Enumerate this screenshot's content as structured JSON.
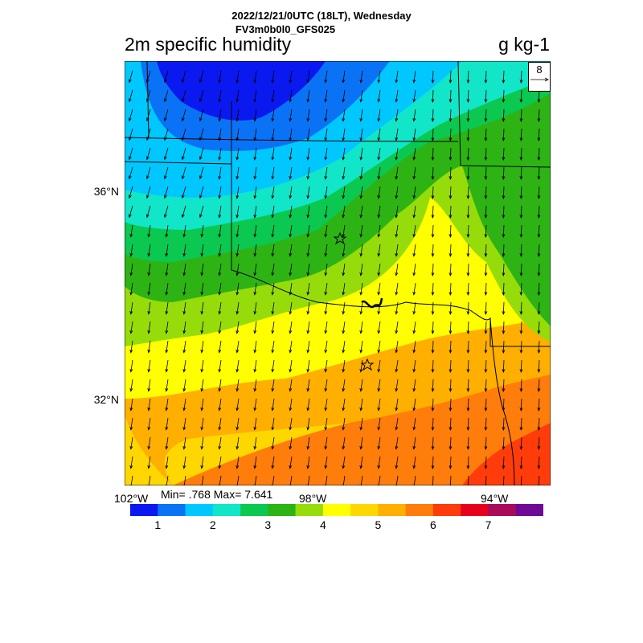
{
  "header": {
    "datetime": "2022/12/21/0UTC (18LT), Wednesday",
    "model": "FV3m0b0l0_GFS025"
  },
  "map": {
    "title": "2m specific humidity",
    "units": "g kg-1",
    "lat_ticks": [
      "36°N",
      "32°N"
    ],
    "lon_ticks": [
      "102°W",
      "98°W",
      "94°W"
    ],
    "reference_vector": "8",
    "stats": "Min= .768 Max= 7.641"
  },
  "colorbar": {
    "colors": [
      "#0a19f0",
      "#0a73f5",
      "#00c8ff",
      "#11e6c8",
      "#0bc850",
      "#2db414",
      "#96dc0a",
      "#ffff00",
      "#ffd700",
      "#ffaf00",
      "#ff7d0a",
      "#ff3c0a",
      "#e6001e",
      "#aa0a5a",
      "#6e0a96"
    ],
    "labels": [
      "1",
      "2",
      "3",
      "4",
      "5",
      "6",
      "7"
    ]
  },
  "icons": {
    "city": "star-icon",
    "wind": "arrow-icon"
  }
}
